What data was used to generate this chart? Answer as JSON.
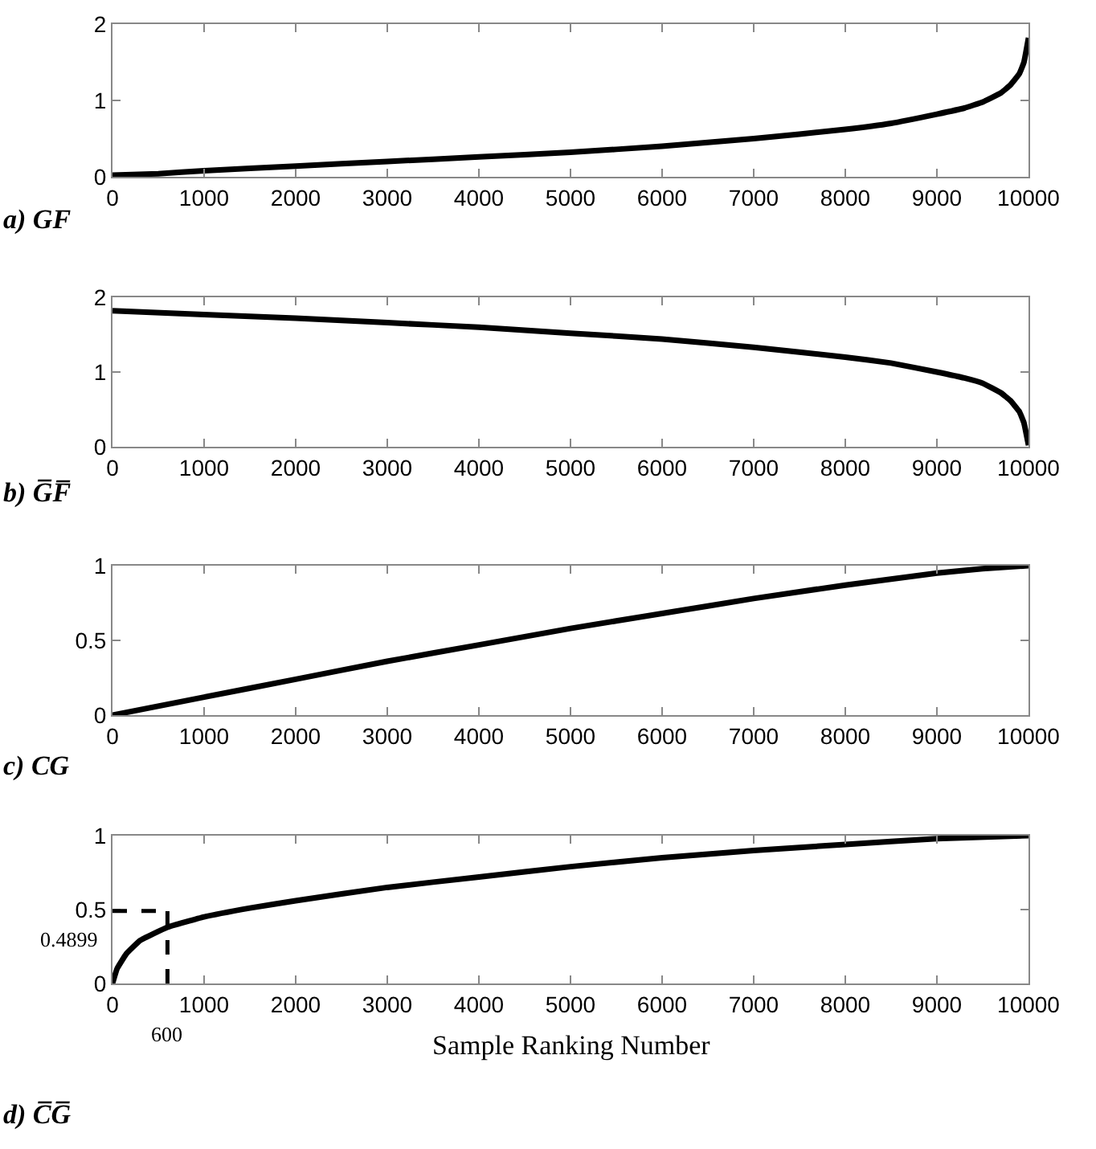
{
  "chart_data": [
    {
      "type": "line",
      "title": "a) GF",
      "grid": false,
      "marker": "none",
      "line_style": "solid",
      "xlim": [
        0,
        10000
      ],
      "xticks": [
        0,
        1000,
        2000,
        3000,
        4000,
        5000,
        6000,
        7000,
        8000,
        9000,
        10000
      ],
      "ylim": [
        0,
        2
      ],
      "yticks": [
        0,
        1,
        2
      ],
      "series": [
        {
          "color": "#000000",
          "x": [
            0,
            500,
            1000,
            2000,
            3000,
            4000,
            5000,
            6000,
            7000,
            8000,
            8500,
            9000,
            9300,
            9500,
            9700,
            9800,
            9900,
            9950,
            10000
          ],
          "values": [
            0.02,
            0.04,
            0.08,
            0.14,
            0.2,
            0.26,
            0.32,
            0.4,
            0.5,
            0.62,
            0.7,
            0.82,
            0.9,
            0.98,
            1.1,
            1.2,
            1.35,
            1.5,
            1.82
          ]
        }
      ]
    },
    {
      "type": "line",
      "title": "b) G̅F̅",
      "grid": false,
      "marker": "none",
      "line_style": "solid",
      "xlim": [
        0,
        10000
      ],
      "xticks": [
        0,
        1000,
        2000,
        3000,
        4000,
        5000,
        6000,
        7000,
        8000,
        9000,
        10000
      ],
      "ylim": [
        0,
        2
      ],
      "yticks": [
        0,
        1,
        2
      ],
      "series": [
        {
          "color": "#000000",
          "x": [
            0,
            1000,
            2000,
            3000,
            4000,
            5000,
            6000,
            7000,
            8000,
            8500,
            9000,
            9300,
            9500,
            9700,
            9800,
            9900,
            9950,
            10000
          ],
          "values": [
            1.82,
            1.77,
            1.72,
            1.66,
            1.6,
            1.52,
            1.44,
            1.33,
            1.2,
            1.12,
            1.0,
            0.92,
            0.85,
            0.72,
            0.62,
            0.47,
            0.32,
            0.02
          ]
        }
      ]
    },
    {
      "type": "line",
      "title": "c) CG",
      "grid": false,
      "marker": "none",
      "line_style": "solid",
      "xlim": [
        0,
        10000
      ],
      "xticks": [
        0,
        1000,
        2000,
        3000,
        4000,
        5000,
        6000,
        7000,
        8000,
        9000,
        10000
      ],
      "ylim": [
        0,
        1
      ],
      "yticks": [
        0,
        0.5,
        1
      ],
      "series": [
        {
          "color": "#000000",
          "x": [
            0,
            1000,
            2000,
            3000,
            4000,
            5000,
            6000,
            7000,
            8000,
            9000,
            9500,
            10000
          ],
          "values": [
            0,
            0.12,
            0.24,
            0.36,
            0.47,
            0.58,
            0.68,
            0.78,
            0.87,
            0.95,
            0.98,
            1.0
          ]
        }
      ]
    },
    {
      "type": "line",
      "title": "d) C̅G̅",
      "xlabel": "Sample Ranking Number",
      "grid": false,
      "marker": "none",
      "line_style": "solid",
      "xlim": [
        0,
        10000
      ],
      "xticks": [
        0,
        1000,
        2000,
        3000,
        4000,
        5000,
        6000,
        7000,
        8000,
        9000,
        10000
      ],
      "ylim": [
        0,
        1
      ],
      "yticks": [
        0,
        0.5,
        1
      ],
      "ref_lines": [
        {
          "axis": "y",
          "value": 0.4899,
          "label": "0.4899",
          "line_style": "dashed"
        },
        {
          "axis": "x",
          "value": 600,
          "label": "600",
          "line_style": "dashed"
        }
      ],
      "series": [
        {
          "color": "#000000",
          "x": [
            0,
            50,
            150,
            300,
            600,
            1000,
            1500,
            2000,
            3000,
            4000,
            5000,
            6000,
            7000,
            8000,
            9000,
            10000
          ],
          "values": [
            0,
            0.1,
            0.2,
            0.29,
            0.38,
            0.45,
            0.51,
            0.56,
            0.65,
            0.72,
            0.79,
            0.85,
            0.9,
            0.94,
            0.98,
            1.0
          ]
        }
      ]
    }
  ]
}
